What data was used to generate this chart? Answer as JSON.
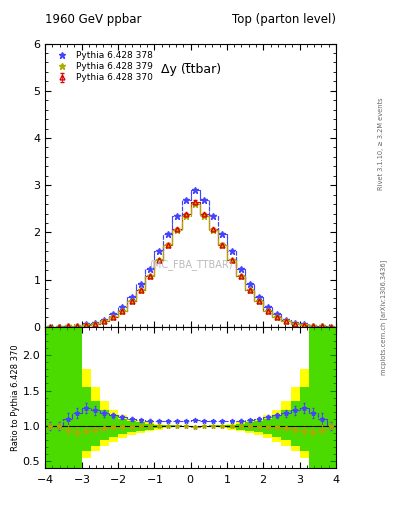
{
  "title_left": "1960 GeV ppbar",
  "title_right": "Top (parton level)",
  "ylabel_ratio": "Ratio to Pythia 6.428 370",
  "plot_label": "Δy (t̅tbar)",
  "watermark": "(MC_FBA_TTBAR)",
  "rivet_label": "Rivet 3.1.10, ≥ 3.2M events",
  "arxiv_label": "mcplots.cern.ch [arXiv:1306.3436]",
  "xmin": -4,
  "xmax": 4,
  "ymin_main": 0,
  "ymax_main": 6,
  "ymin_ratio": 0.4,
  "ymax_ratio": 2.4,
  "yticks_main": [
    0,
    1,
    2,
    3,
    4,
    5,
    6
  ],
  "yticks_ratio": [
    0.5,
    1.0,
    1.5,
    2.0
  ],
  "series": [
    {
      "label": "Pythia 6.428 370",
      "color": "#dd0000",
      "marker": "^",
      "linestyle": "-",
      "linewidth": 0.8,
      "markersize": 3.5,
      "fillstyle": "none"
    },
    {
      "label": "Pythia 6.428 378",
      "color": "#4444ff",
      "marker": "*",
      "linestyle": "--",
      "linewidth": 0.8,
      "markersize": 5,
      "fillstyle": "full"
    },
    {
      "label": "Pythia 6.428 379",
      "color": "#aaaa00",
      "marker": "*",
      "linestyle": "-.",
      "linewidth": 0.8,
      "markersize": 5,
      "fillstyle": "full"
    }
  ],
  "bin_edges": [
    -4.0,
    -3.75,
    -3.5,
    -3.25,
    -3.0,
    -2.75,
    -2.5,
    -2.25,
    -2.0,
    -1.75,
    -1.5,
    -1.25,
    -1.0,
    -0.75,
    -0.5,
    -0.25,
    0.0,
    0.25,
    0.5,
    0.75,
    1.0,
    1.25,
    1.5,
    1.75,
    2.0,
    2.25,
    2.5,
    2.75,
    3.0,
    3.25,
    3.5,
    3.75,
    4.0
  ],
  "y370": [
    0.001,
    0.001,
    0.01,
    0.02,
    0.04,
    0.07,
    0.12,
    0.21,
    0.34,
    0.54,
    0.78,
    1.07,
    1.41,
    1.74,
    2.07,
    2.38,
    2.65,
    2.38,
    2.07,
    1.74,
    1.41,
    1.07,
    0.78,
    0.54,
    0.34,
    0.21,
    0.12,
    0.07,
    0.04,
    0.02,
    0.01,
    0.001
  ],
  "y378": [
    0.001,
    0.001,
    0.012,
    0.025,
    0.055,
    0.09,
    0.155,
    0.265,
    0.42,
    0.635,
    0.91,
    1.22,
    1.6,
    1.97,
    2.34,
    2.68,
    2.9,
    2.68,
    2.34,
    1.97,
    1.6,
    1.22,
    0.91,
    0.635,
    0.42,
    0.265,
    0.155,
    0.09,
    0.055,
    0.025,
    0.012,
    0.001
  ],
  "y379": [
    0.001,
    0.001,
    0.01,
    0.02,
    0.04,
    0.07,
    0.12,
    0.21,
    0.34,
    0.54,
    0.78,
    1.07,
    1.41,
    1.73,
    2.05,
    2.35,
    2.6,
    2.35,
    2.05,
    1.73,
    1.41,
    1.07,
    0.78,
    0.54,
    0.34,
    0.21,
    0.12,
    0.07,
    0.04,
    0.02,
    0.01,
    0.001
  ],
  "err370": [
    0.001,
    0.001,
    0.002,
    0.003,
    0.004,
    0.006,
    0.008,
    0.012,
    0.015,
    0.018,
    0.022,
    0.025,
    0.028,
    0.03,
    0.032,
    0.033,
    0.034,
    0.033,
    0.032,
    0.03,
    0.028,
    0.025,
    0.022,
    0.018,
    0.015,
    0.012,
    0.008,
    0.006,
    0.004,
    0.003,
    0.002,
    0.001
  ],
  "ratio_yellow_low": [
    0.4,
    0.4,
    0.4,
    0.4,
    0.55,
    0.65,
    0.72,
    0.78,
    0.83,
    0.87,
    0.9,
    0.93,
    0.95,
    0.97,
    0.98,
    0.99,
    0.995,
    0.99,
    0.98,
    0.97,
    0.95,
    0.93,
    0.9,
    0.87,
    0.83,
    0.78,
    0.72,
    0.65,
    0.55,
    0.4,
    0.4,
    0.4
  ],
  "ratio_yellow_high": [
    2.4,
    2.4,
    2.4,
    2.4,
    1.8,
    1.55,
    1.35,
    1.22,
    1.15,
    1.1,
    1.07,
    1.05,
    1.03,
    1.02,
    1.01,
    1.005,
    1.0,
    1.005,
    1.01,
    1.02,
    1.03,
    1.05,
    1.07,
    1.1,
    1.15,
    1.22,
    1.35,
    1.55,
    1.8,
    2.4,
    2.4,
    2.4
  ],
  "ratio_green_low": [
    0.4,
    0.4,
    0.4,
    0.4,
    0.65,
    0.72,
    0.8,
    0.85,
    0.88,
    0.91,
    0.93,
    0.95,
    0.97,
    0.98,
    0.99,
    0.995,
    1.0,
    0.995,
    0.99,
    0.98,
    0.97,
    0.95,
    0.93,
    0.91,
    0.88,
    0.85,
    0.8,
    0.72,
    0.65,
    0.4,
    0.4,
    0.4
  ],
  "ratio_green_high": [
    2.4,
    2.4,
    2.4,
    2.4,
    1.55,
    1.35,
    1.22,
    1.15,
    1.1,
    1.07,
    1.05,
    1.03,
    1.02,
    1.015,
    1.008,
    1.003,
    1.0,
    1.003,
    1.008,
    1.015,
    1.02,
    1.03,
    1.05,
    1.07,
    1.1,
    1.15,
    1.22,
    1.35,
    1.55,
    2.4,
    2.4,
    2.4
  ],
  "ratio378": [
    1.0,
    1.0,
    1.1,
    1.18,
    1.25,
    1.22,
    1.18,
    1.15,
    1.13,
    1.1,
    1.08,
    1.075,
    1.07,
    1.07,
    1.07,
    1.075,
    1.08,
    1.075,
    1.07,
    1.07,
    1.07,
    1.075,
    1.08,
    1.1,
    1.13,
    1.15,
    1.18,
    1.22,
    1.25,
    1.18,
    1.1,
    1.0
  ],
  "ratio378_err": [
    0.05,
    0.05,
    0.08,
    0.07,
    0.07,
    0.06,
    0.05,
    0.04,
    0.03,
    0.025,
    0.02,
    0.018,
    0.015,
    0.013,
    0.012,
    0.011,
    0.011,
    0.011,
    0.012,
    0.013,
    0.015,
    0.018,
    0.02,
    0.025,
    0.03,
    0.04,
    0.05,
    0.06,
    0.07,
    0.07,
    0.08,
    0.05
  ],
  "ratio379": [
    1.0,
    1.0,
    0.95,
    0.92,
    0.93,
    0.95,
    0.97,
    0.98,
    0.99,
    0.99,
    0.995,
    0.998,
    1.0,
    0.998,
    0.995,
    0.995,
    0.98,
    0.995,
    0.995,
    0.998,
    1.0,
    0.998,
    0.995,
    0.99,
    0.99,
    0.98,
    0.97,
    0.95,
    0.93,
    0.92,
    0.95,
    1.0
  ],
  "ratio379_err": [
    0.04,
    0.04,
    0.06,
    0.06,
    0.05,
    0.04,
    0.03,
    0.025,
    0.02,
    0.018,
    0.015,
    0.012,
    0.01,
    0.009,
    0.008,
    0.008,
    0.008,
    0.008,
    0.008,
    0.009,
    0.01,
    0.012,
    0.015,
    0.018,
    0.02,
    0.025,
    0.03,
    0.04,
    0.05,
    0.06,
    0.06,
    0.04
  ],
  "background_color": "#ffffff"
}
